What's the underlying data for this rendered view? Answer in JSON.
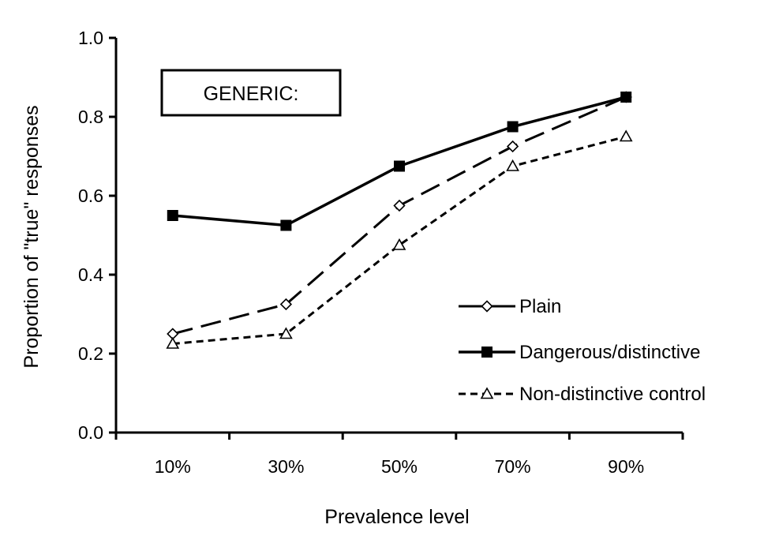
{
  "chart_data": {
    "type": "line",
    "annotation": "GENERIC:",
    "xlabel": "Prevalence level",
    "ylabel": "Proportion of \"true\" responses",
    "categories": [
      "10%",
      "30%",
      "50%",
      "70%",
      "90%"
    ],
    "ylim": [
      0,
      1
    ],
    "yticks": [
      "0.0",
      "0.2",
      "0.4",
      "0.6",
      "0.8",
      "1.0"
    ],
    "grid": false,
    "legend_position": "bottom-right",
    "series": [
      {
        "name": "Plain",
        "values": [
          0.25,
          0.325,
          0.575,
          0.725,
          0.85
        ],
        "marker": "diamond-open",
        "line": "long-dash",
        "color": "#000000"
      },
      {
        "name": "Dangerous/distinctive",
        "values": [
          0.55,
          0.525,
          0.675,
          0.775,
          0.85
        ],
        "marker": "square-filled",
        "line": "solid",
        "color": "#000000"
      },
      {
        "name": "Non-distinctive control",
        "values": [
          0.225,
          0.25,
          0.475,
          0.675,
          0.75
        ],
        "marker": "triangle-open",
        "line": "short-dash",
        "color": "#000000"
      }
    ]
  }
}
